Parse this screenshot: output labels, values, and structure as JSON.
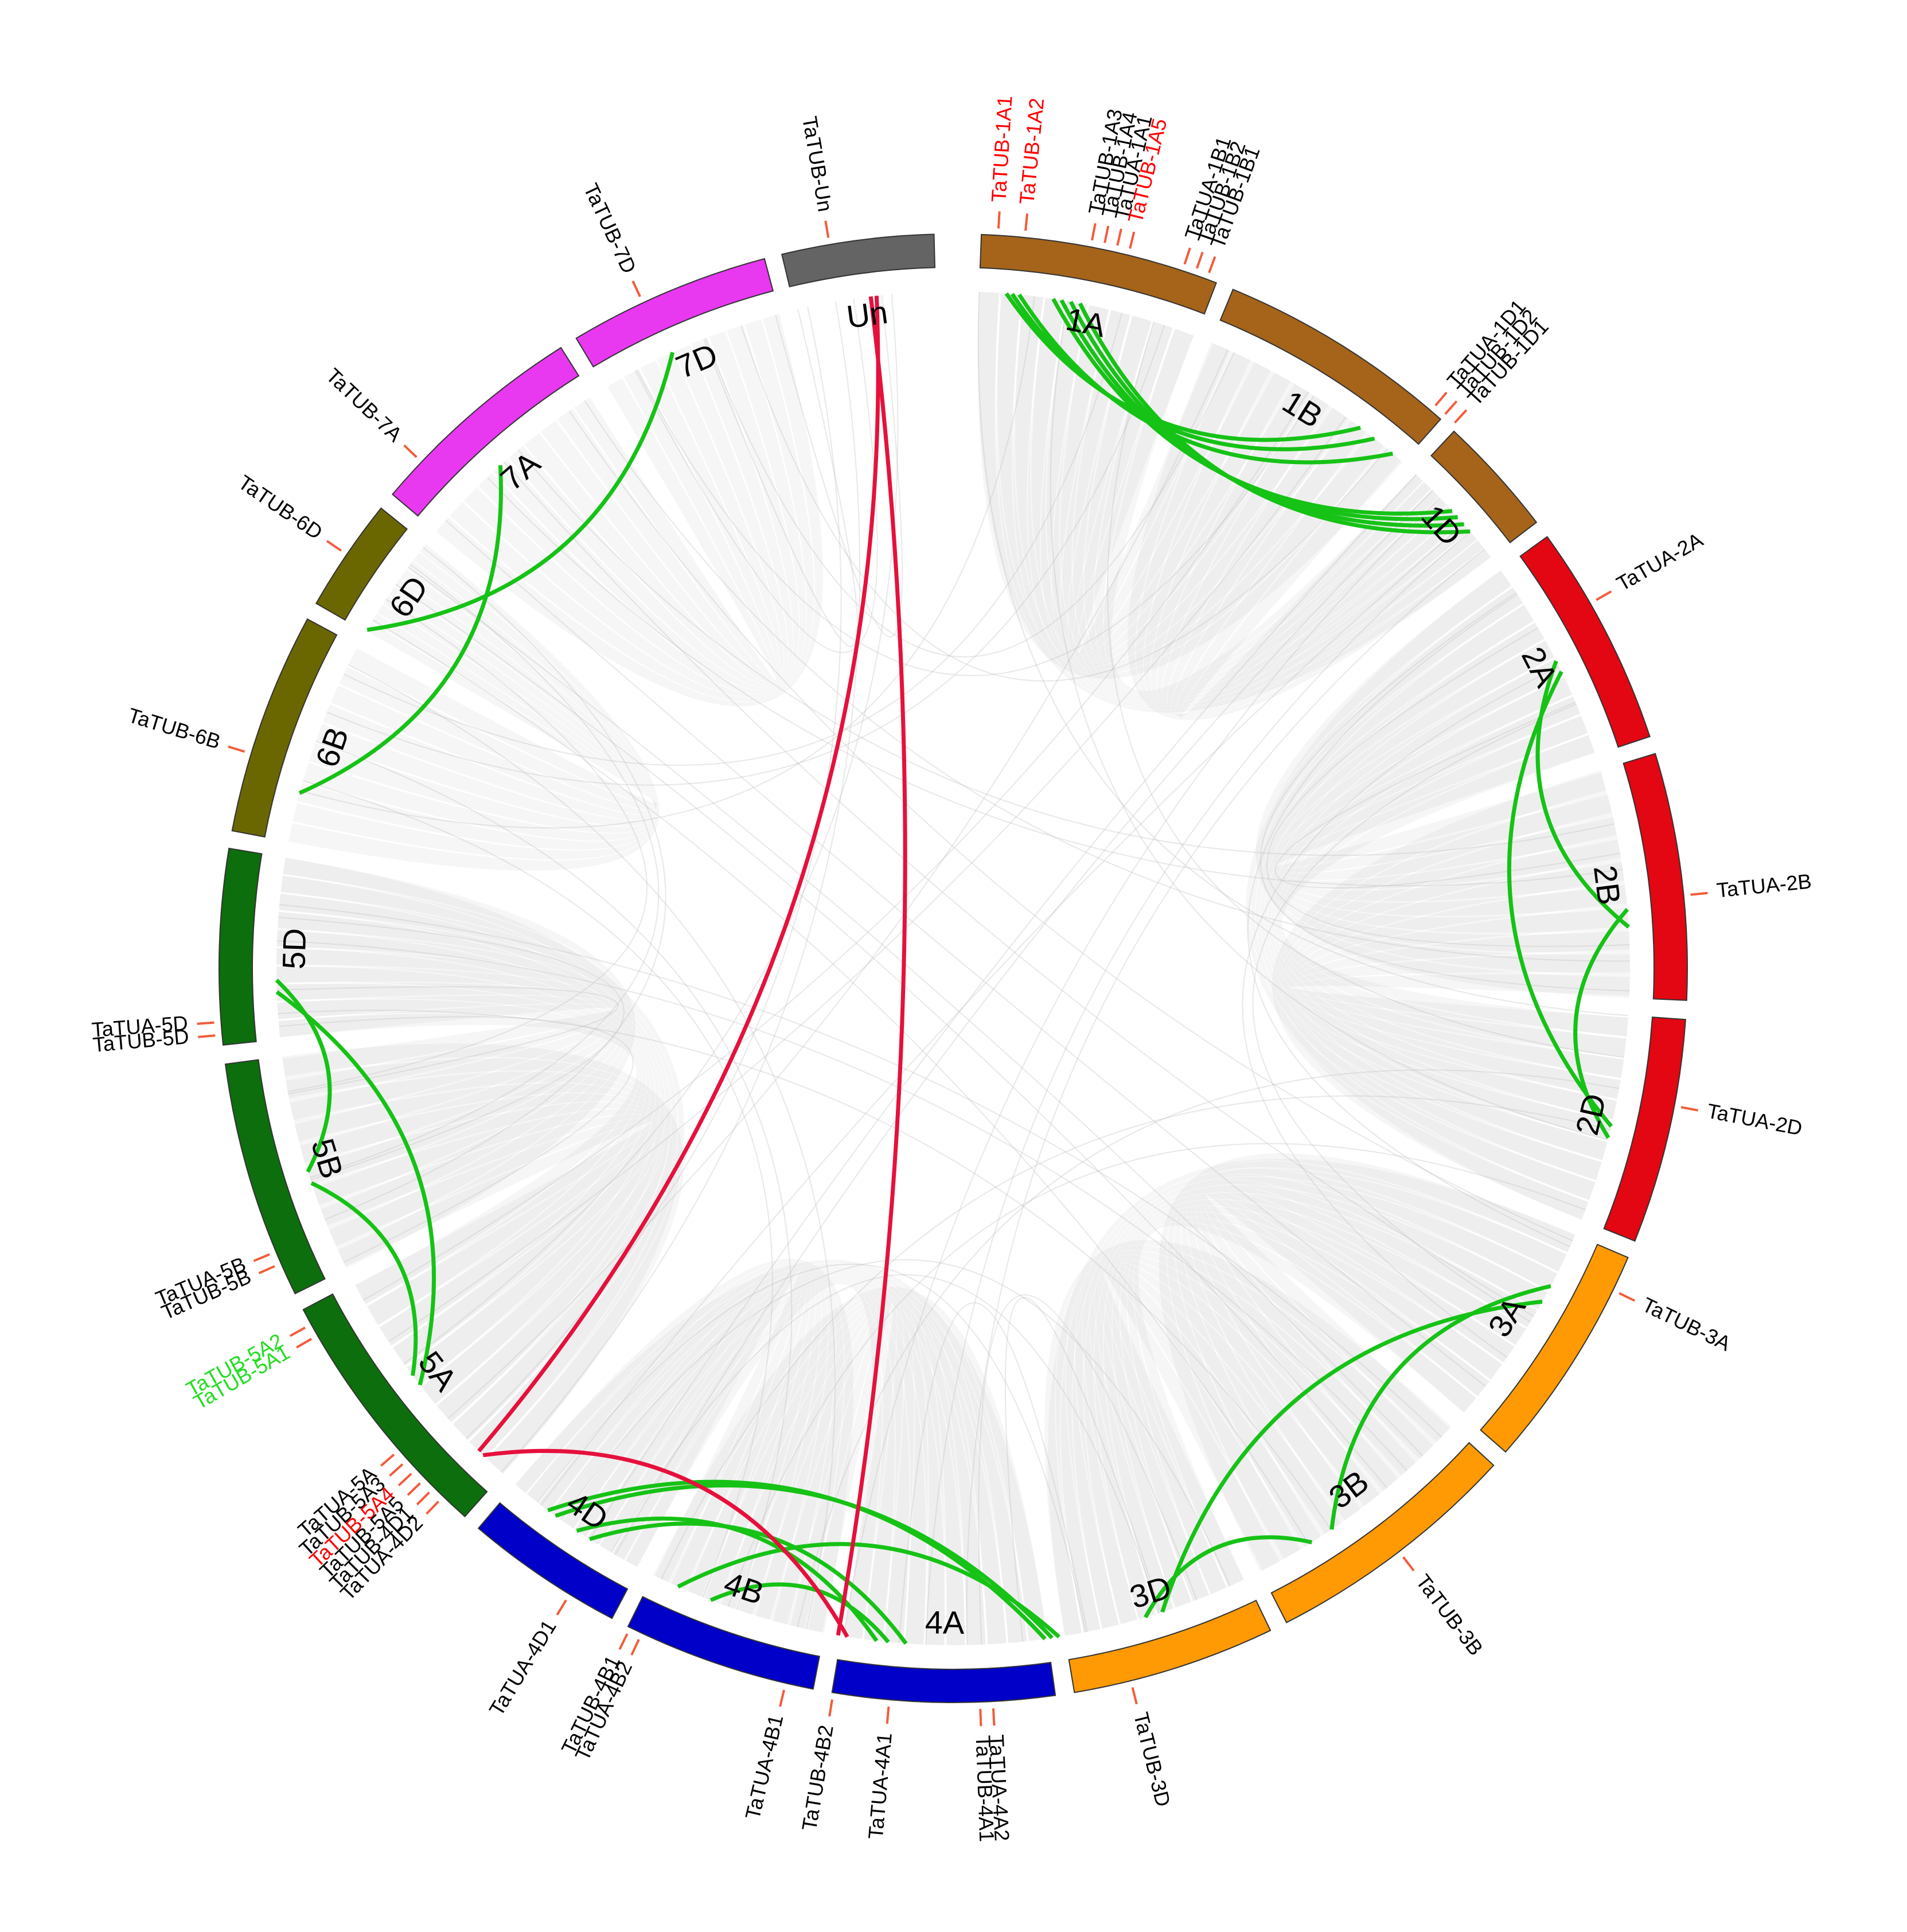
{
  "colors": {
    "ribbon_bg": "#bdbdbd",
    "link_intra": "#16c216",
    "link_inter": "#e5113c",
    "tick": "#f25c3b",
    "text_default": "#000000",
    "text_red": "#ff0000",
    "text_green": "#22dd22"
  },
  "chromosomes": [
    {
      "id": "1A",
      "label": "1A",
      "start": 2.2,
      "end": 21.0,
      "color": "#a5641a"
    },
    {
      "id": "1B",
      "label": "1B",
      "start": 22.4,
      "end": 41.6,
      "color": "#a5641a"
    },
    {
      "id": "1D",
      "label": "1D",
      "start": 43.0,
      "end": 52.6,
      "color": "#a5641a"
    },
    {
      "id": "2A",
      "label": "2A",
      "start": 54.0,
      "end": 71.6,
      "color": "#e30613"
    },
    {
      "id": "2B",
      "label": "2B",
      "start": 73.0,
      "end": 92.5,
      "color": "#e30613"
    },
    {
      "id": "2D",
      "label": "2D",
      "start": 94.0,
      "end": 111.8,
      "color": "#e30613"
    },
    {
      "id": "3A",
      "label": "3A",
      "start": 113.2,
      "end": 131.2,
      "color": "#ff9a05"
    },
    {
      "id": "3B",
      "label": "3B",
      "start": 132.6,
      "end": 153.0,
      "color": "#ff9a05"
    },
    {
      "id": "3D",
      "label": "3D",
      "start": 154.4,
      "end": 170.5,
      "color": "#ff9a05"
    },
    {
      "id": "4A",
      "label": "4A",
      "start": 172.0,
      "end": 189.5,
      "color": "#0000c8"
    },
    {
      "id": "4B",
      "label": "4B",
      "start": 191.0,
      "end": 206.3,
      "color": "#0000c8"
    },
    {
      "id": "4D",
      "label": "4D",
      "start": 207.7,
      "end": 220.3,
      "color": "#0000c8"
    },
    {
      "id": "5A",
      "label": "5A",
      "start": 221.7,
      "end": 242.3,
      "color": "#0c6e0c"
    },
    {
      "id": "5B",
      "label": "5B",
      "start": 243.7,
      "end": 262.5,
      "color": "#0c6e0c"
    },
    {
      "id": "5D",
      "label": "5D",
      "start": 264.0,
      "end": 279.4,
      "color": "#0c6e0c"
    },
    {
      "id": "6B",
      "label": "6B",
      "start": 280.8,
      "end": 298.4,
      "color": "#6b6700"
    },
    {
      "id": "6D",
      "label": "6D",
      "start": 299.8,
      "end": 308.8,
      "color": "#6b6700"
    },
    {
      "id": "7A",
      "label": "7A",
      "start": 310.2,
      "end": 327.7,
      "color": "#e838f0"
    },
    {
      "id": "7D",
      "label": "7D",
      "start": 329.1,
      "end": 345.1,
      "color": "#e838f0"
    },
    {
      "id": "Un",
      "label": "Un",
      "start": 346.5,
      "end": 358.5,
      "color": "#646464"
    }
  ],
  "genes": [
    {
      "label": "TaTUB-1A1",
      "angle": 3.5,
      "color": "red"
    },
    {
      "label": "TaTUB-1A2",
      "angle": 5.6,
      "color": "red"
    },
    {
      "label": "TaTUB-1A3",
      "angle": 10.8,
      "color": "black"
    },
    {
      "label": "TaTUB-1A4",
      "angle": 11.8,
      "color": "black"
    },
    {
      "label": "TaTUA-1A1",
      "angle": 12.8,
      "color": "black"
    },
    {
      "label": "TaTUB-1A5",
      "angle": 13.8,
      "color": "red"
    },
    {
      "label": "TaTUA-1B1",
      "angle": 18.2,
      "color": "black"
    },
    {
      "label": "TaTUB-1B2",
      "angle": 19.2,
      "color": "black"
    },
    {
      "label": "TaTUB-1B1",
      "angle": 20.2,
      "color": "black"
    },
    {
      "label": "TaTUA-1D1",
      "angle": 40.6,
      "color": "black"
    },
    {
      "label": "TaTUB-1D2",
      "angle": 41.6,
      "color": "black"
    },
    {
      "label": "TaTUB-1D1",
      "angle": 42.6,
      "color": "black"
    },
    {
      "label": "TaTUA-2A",
      "angle": 60.2,
      "color": "black"
    },
    {
      "label": "TaTUA-2B",
      "angle": 84.3,
      "color": "black"
    },
    {
      "label": "TaTUA-2D",
      "angle": 100.8,
      "color": "black"
    },
    {
      "label": "TaTUB-3A",
      "angle": 116.0,
      "color": "black"
    },
    {
      "label": "TaTUB-3B",
      "angle": 142.6,
      "color": "black"
    },
    {
      "label": "TaTUB-3D",
      "angle": 166.0,
      "color": "black"
    },
    {
      "label": "TaTUB-4A1",
      "angle": 177.9,
      "color": "black"
    },
    {
      "label": "TaTUA-4A2",
      "angle": 176.9,
      "color": "black"
    },
    {
      "label": "TaTUA-4A1",
      "angle": 185.0,
      "color": "black"
    },
    {
      "label": "TaTUB-4B2",
      "angle": 189.4,
      "color": "black"
    },
    {
      "label": "TaTUA-4B1",
      "angle": 193.2,
      "color": "black"
    },
    {
      "label": "TaTUB-4B1",
      "angle": 206.1,
      "color": "black"
    },
    {
      "label": "TaTUA-4B2",
      "angle": 205.1,
      "color": "black"
    },
    {
      "label": "TaTUA-4D1",
      "angle": 211.5,
      "color": "black"
    },
    {
      "label": "TaTUA-5A",
      "angle": 229.0,
      "color": "black"
    },
    {
      "label": "TaTUB-5A3",
      "angle": 228.0,
      "color": "black"
    },
    {
      "label": "TaTUB-5A4",
      "angle": 227.0,
      "color": "red"
    },
    {
      "label": "TaTUB-5A5",
      "angle": 226.0,
      "color": "black"
    },
    {
      "label": "TaTUB-4D1",
      "angle": 225.0,
      "color": "black"
    },
    {
      "label": "TaTUA-4D2",
      "angle": 224.0,
      "color": "black"
    },
    {
      "label": "TaTUB-5A2",
      "angle": 241.0,
      "color": "green"
    },
    {
      "label": "TaTUB-5A1",
      "angle": 240.0,
      "color": "green"
    },
    {
      "label": "TaTUA-5B",
      "angle": 247.3,
      "color": "black"
    },
    {
      "label": "TaTUB-5B",
      "angle": 246.3,
      "color": "black"
    },
    {
      "label": "TaTUA-5D",
      "angle": 265.8,
      "color": "black"
    },
    {
      "label": "TaTUB-5D",
      "angle": 264.8,
      "color": "black"
    },
    {
      "label": "TaTUB-6B",
      "angle": 287.0,
      "color": "black"
    },
    {
      "label": "TaTUB-6D",
      "angle": 304.3,
      "color": "black"
    },
    {
      "label": "TaTUB-7A",
      "angle": 313.6,
      "color": "black"
    },
    {
      "label": "TaTUB-7D",
      "angle": 335.0,
      "color": "black"
    },
    {
      "label": "TaTUB-Un",
      "angle": 350.3,
      "color": "black"
    }
  ],
  "links": [
    {
      "from": 4.5,
      "to": 37.0,
      "color": "green"
    },
    {
      "from": 5.0,
      "to": 38.5,
      "color": "green"
    },
    {
      "from": 5.6,
      "to": 40.5,
      "color": "green"
    },
    {
      "from": 8.5,
      "to": 47.5,
      "color": "green"
    },
    {
      "from": 9.2,
      "to": 48.2,
      "color": "green"
    },
    {
      "from": 10.0,
      "to": 49.0,
      "color": "green"
    },
    {
      "from": 10.8,
      "to": 49.8,
      "color": "green"
    },
    {
      "from": 63.0,
      "to": 86.5,
      "color": "green"
    },
    {
      "from": 64.0,
      "to": 103.5,
      "color": "green"
    },
    {
      "from": 85.0,
      "to": 104.5,
      "color": "green"
    },
    {
      "from": 118.0,
      "to": 146.0,
      "color": "green"
    },
    {
      "from": 119.5,
      "to": 162.0,
      "color": "green"
    },
    {
      "from": 148.0,
      "to": 163.5,
      "color": "green"
    },
    {
      "from": 171.0,
      "to": 204.0,
      "color": "green"
    },
    {
      "from": 171.6,
      "to": 216.0,
      "color": "green"
    },
    {
      "from": 172.2,
      "to": 216.8,
      "color": "green"
    },
    {
      "from": 184.0,
      "to": 212.5,
      "color": "green"
    },
    {
      "from": 185.5,
      "to": 201.0,
      "color": "green"
    },
    {
      "from": 186.5,
      "to": 213.8,
      "color": "green"
    },
    {
      "from": 232.0,
      "to": 268.0,
      "color": "green"
    },
    {
      "from": 233.0,
      "to": 251.5,
      "color": "green"
    },
    {
      "from": 252.5,
      "to": 269.0,
      "color": "green"
    },
    {
      "from": 285.0,
      "to": 318.0,
      "color": "green"
    },
    {
      "from": 300.0,
      "to": 335.5,
      "color": "green"
    },
    {
      "from": 189.8,
      "to": 353.0,
      "color": "red"
    },
    {
      "from": 224.5,
      "to": 353.5,
      "color": "red"
    },
    {
      "from": 189.0,
      "to": 224.0,
      "color": "red"
    }
  ]
}
